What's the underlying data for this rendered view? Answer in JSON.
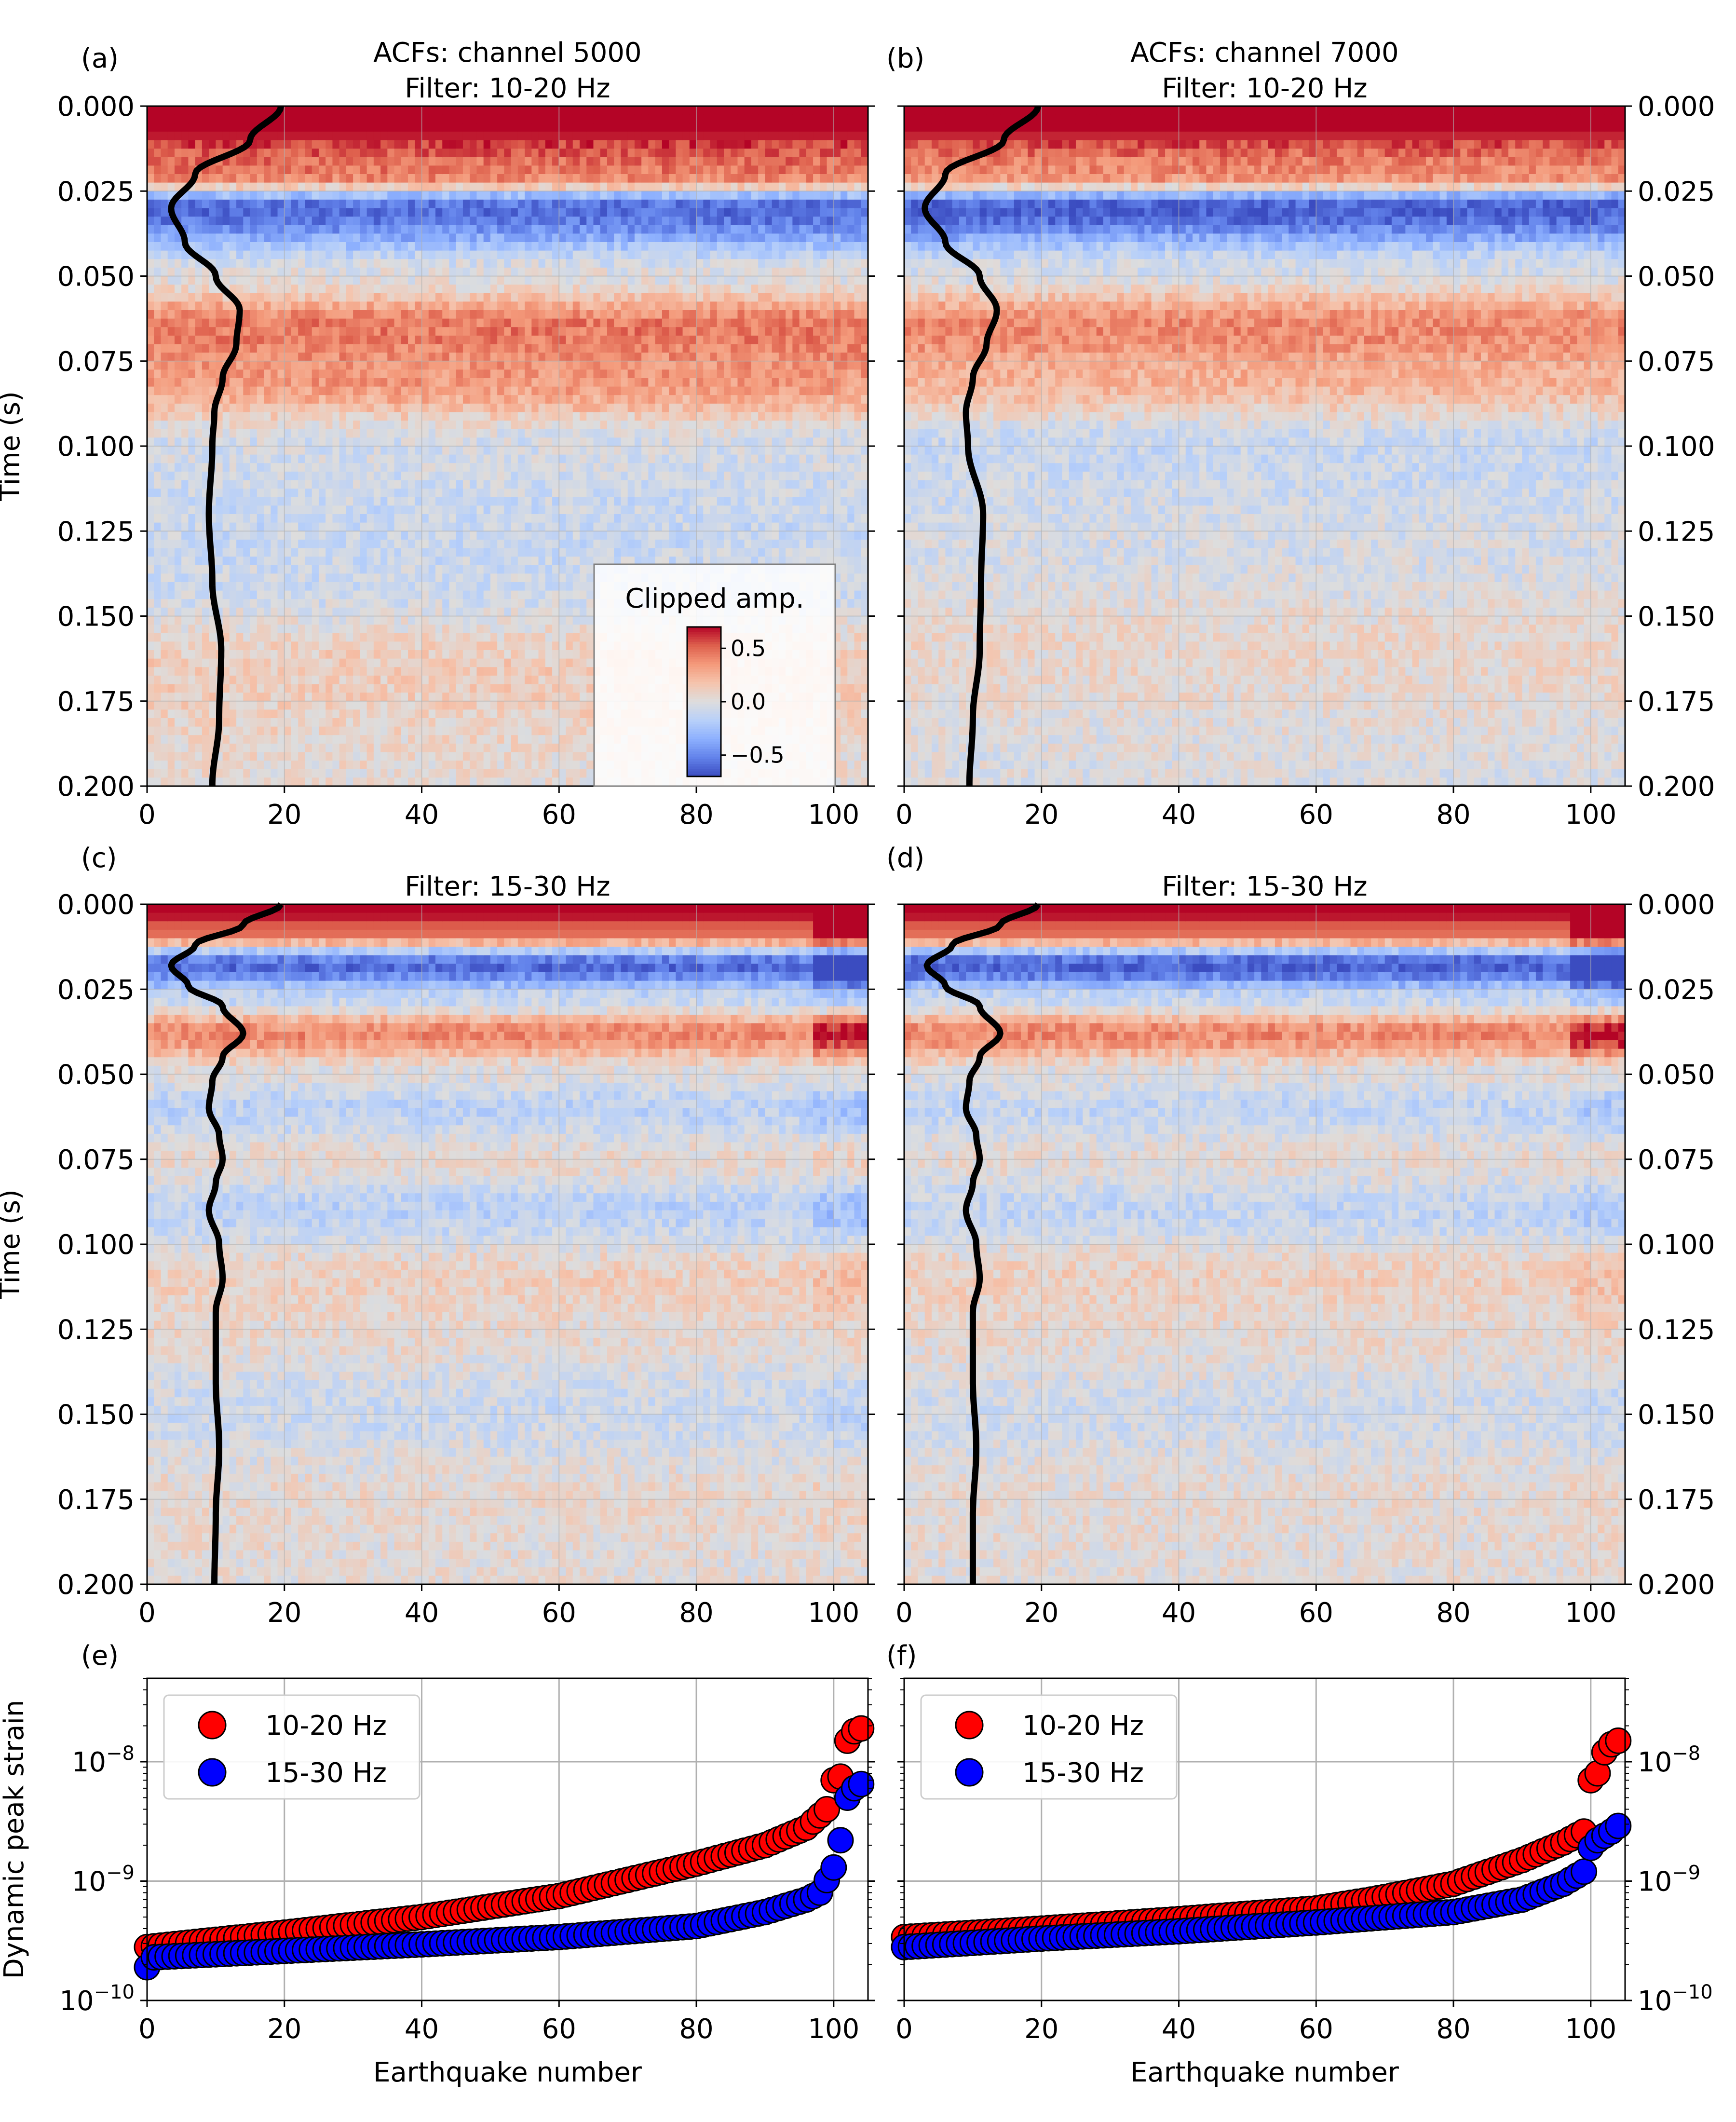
{
  "figure": {
    "colorbar": {
      "title": "Clipped amp.",
      "ticks": [
        "0.5",
        "0.0",
        "−0.5"
      ],
      "tick_values": [
        0.5,
        0.0,
        -0.5
      ],
      "range": [
        -0.7,
        0.7
      ],
      "colormap": "coolwarm"
    },
    "colors": {
      "red_series": "#ff0000",
      "blue_series": "#0000ff",
      "marker_edge": "#000000",
      "trace": "#000000",
      "grid": "#b0b0b0"
    }
  },
  "chart_data": [
    {
      "panel": "(a)",
      "type": "heatmap",
      "title_lines": [
        "ACFs: channel 5000",
        "Filter: 10-20 Hz"
      ],
      "xlabel": "",
      "ylabel": "Time (s)",
      "xlim": [
        0,
        105
      ],
      "ylim": [
        0.2,
        0.0
      ],
      "xticks": [
        0,
        20,
        40,
        60,
        80,
        100
      ],
      "yticks": [
        "0.000",
        "0.025",
        "0.050",
        "0.075",
        "0.100",
        "0.125",
        "0.150",
        "0.175",
        "0.200"
      ],
      "grid": true,
      "ytick_side": "left",
      "has_colorbar": true,
      "amplitude_profile": [
        {
          "t": 0.0,
          "a": 0.8
        },
        {
          "t": 0.02,
          "a": 0.45
        },
        {
          "t": 0.03,
          "a": -0.6
        },
        {
          "t": 0.05,
          "a": 0.0
        },
        {
          "t": 0.065,
          "a": 0.45
        },
        {
          "t": 0.08,
          "a": 0.35
        },
        {
          "t": 0.1,
          "a": -0.05
        },
        {
          "t": 0.125,
          "a": -0.1
        },
        {
          "t": 0.14,
          "a": -0.08
        },
        {
          "t": 0.165,
          "a": 0.12
        },
        {
          "t": 0.2,
          "a": 0.04
        }
      ],
      "trace": [
        {
          "t": 0.0,
          "x": 19.5
        },
        {
          "t": 0.01,
          "x": 15
        },
        {
          "t": 0.02,
          "x": 7
        },
        {
          "t": 0.03,
          "x": 3.5
        },
        {
          "t": 0.04,
          "x": 5.5
        },
        {
          "t": 0.05,
          "x": 10
        },
        {
          "t": 0.06,
          "x": 13.5
        },
        {
          "t": 0.07,
          "x": 13
        },
        {
          "t": 0.08,
          "x": 11
        },
        {
          "t": 0.09,
          "x": 9.8
        },
        {
          "t": 0.1,
          "x": 9.5
        },
        {
          "t": 0.12,
          "x": 9
        },
        {
          "t": 0.14,
          "x": 9.5
        },
        {
          "t": 0.16,
          "x": 10.8
        },
        {
          "t": 0.18,
          "x": 10.5
        },
        {
          "t": 0.2,
          "x": 9.5
        }
      ]
    },
    {
      "panel": "(b)",
      "type": "heatmap",
      "title_lines": [
        "ACFs: channel 7000",
        "Filter: 10-20 Hz"
      ],
      "xlabel": "",
      "ylabel": "",
      "xlim": [
        0,
        105
      ],
      "ylim": [
        0.2,
        0.0
      ],
      "xticks": [
        0,
        20,
        40,
        60,
        80,
        100
      ],
      "yticks": [
        "0.000",
        "0.025",
        "0.050",
        "0.075",
        "0.100",
        "0.125",
        "0.150",
        "0.175",
        "0.200"
      ],
      "grid": true,
      "ytick_side": "right",
      "has_colorbar": false,
      "amplitude_profile": [
        {
          "t": 0.0,
          "a": 0.8
        },
        {
          "t": 0.02,
          "a": 0.4
        },
        {
          "t": 0.03,
          "a": -0.65
        },
        {
          "t": 0.048,
          "a": -0.05
        },
        {
          "t": 0.065,
          "a": 0.4
        },
        {
          "t": 0.08,
          "a": 0.25
        },
        {
          "t": 0.1,
          "a": -0.1
        },
        {
          "t": 0.13,
          "a": -0.04
        },
        {
          "t": 0.16,
          "a": 0.06
        },
        {
          "t": 0.2,
          "a": -0.02
        }
      ],
      "trace": [
        {
          "t": 0.0,
          "x": 19.5
        },
        {
          "t": 0.01,
          "x": 14.5
        },
        {
          "t": 0.02,
          "x": 6
        },
        {
          "t": 0.03,
          "x": 3
        },
        {
          "t": 0.04,
          "x": 6
        },
        {
          "t": 0.05,
          "x": 11
        },
        {
          "t": 0.06,
          "x": 13.5
        },
        {
          "t": 0.07,
          "x": 12
        },
        {
          "t": 0.08,
          "x": 10
        },
        {
          "t": 0.09,
          "x": 9
        },
        {
          "t": 0.1,
          "x": 9.3
        },
        {
          "t": 0.12,
          "x": 11.5
        },
        {
          "t": 0.14,
          "x": 11.2
        },
        {
          "t": 0.16,
          "x": 11
        },
        {
          "t": 0.18,
          "x": 10
        },
        {
          "t": 0.2,
          "x": 9.5
        }
      ]
    },
    {
      "panel": "(c)",
      "type": "heatmap",
      "title_lines": [
        "Filter: 15-30 Hz"
      ],
      "xlabel": "",
      "ylabel": "Time (s)",
      "xlim": [
        0,
        105
      ],
      "ylim": [
        0.2,
        0.0
      ],
      "xticks": [
        0,
        20,
        40,
        60,
        80,
        100
      ],
      "yticks": [
        "0.000",
        "0.025",
        "0.050",
        "0.075",
        "0.100",
        "0.125",
        "0.150",
        "0.175",
        "0.200"
      ],
      "grid": true,
      "ytick_side": "left",
      "has_colorbar": false,
      "amplitude_profile": [
        {
          "t": 0.0,
          "a": 0.8
        },
        {
          "t": 0.008,
          "a": 0.5
        },
        {
          "t": 0.018,
          "a": -0.6
        },
        {
          "t": 0.028,
          "a": -0.1
        },
        {
          "t": 0.038,
          "a": 0.4
        },
        {
          "t": 0.05,
          "a": 0.0
        },
        {
          "t": 0.06,
          "a": -0.15
        },
        {
          "t": 0.075,
          "a": 0.05
        },
        {
          "t": 0.09,
          "a": -0.15
        },
        {
          "t": 0.11,
          "a": 0.1
        },
        {
          "t": 0.125,
          "a": 0.05
        },
        {
          "t": 0.15,
          "a": -0.08
        },
        {
          "t": 0.175,
          "a": 0.05
        },
        {
          "t": 0.2,
          "a": 0.02
        }
      ],
      "trace": [
        {
          "t": 0.0,
          "x": 19.5
        },
        {
          "t": 0.006,
          "x": 14
        },
        {
          "t": 0.012,
          "x": 7
        },
        {
          "t": 0.018,
          "x": 3.5
        },
        {
          "t": 0.024,
          "x": 6
        },
        {
          "t": 0.03,
          "x": 11
        },
        {
          "t": 0.038,
          "x": 14
        },
        {
          "t": 0.045,
          "x": 11
        },
        {
          "t": 0.052,
          "x": 9.5
        },
        {
          "t": 0.06,
          "x": 9
        },
        {
          "t": 0.068,
          "x": 10.5
        },
        {
          "t": 0.075,
          "x": 11
        },
        {
          "t": 0.082,
          "x": 10
        },
        {
          "t": 0.09,
          "x": 9
        },
        {
          "t": 0.1,
          "x": 10.5
        },
        {
          "t": 0.11,
          "x": 11
        },
        {
          "t": 0.12,
          "x": 10
        },
        {
          "t": 0.14,
          "x": 10
        },
        {
          "t": 0.16,
          "x": 10.5
        },
        {
          "t": 0.18,
          "x": 10
        },
        {
          "t": 0.2,
          "x": 9.8
        }
      ]
    },
    {
      "panel": "(d)",
      "type": "heatmap",
      "title_lines": [
        "Filter: 15-30 Hz"
      ],
      "xlabel": "",
      "ylabel": "",
      "xlim": [
        0,
        105
      ],
      "ylim": [
        0.2,
        0.0
      ],
      "xticks": [
        0,
        20,
        40,
        60,
        80,
        100
      ],
      "yticks": [
        "0.000",
        "0.025",
        "0.050",
        "0.075",
        "0.100",
        "0.125",
        "0.150",
        "0.175",
        "0.200"
      ],
      "grid": true,
      "ytick_side": "right",
      "has_colorbar": false,
      "amplitude_profile": [
        {
          "t": 0.0,
          "a": 0.8
        },
        {
          "t": 0.008,
          "a": 0.5
        },
        {
          "t": 0.018,
          "a": -0.65
        },
        {
          "t": 0.028,
          "a": -0.1
        },
        {
          "t": 0.038,
          "a": 0.4
        },
        {
          "t": 0.05,
          "a": 0.0
        },
        {
          "t": 0.06,
          "a": -0.12
        },
        {
          "t": 0.075,
          "a": 0.03
        },
        {
          "t": 0.09,
          "a": -0.12
        },
        {
          "t": 0.11,
          "a": 0.1
        },
        {
          "t": 0.125,
          "a": 0.05
        },
        {
          "t": 0.15,
          "a": -0.06
        },
        {
          "t": 0.175,
          "a": 0.04
        },
        {
          "t": 0.2,
          "a": 0.02
        }
      ],
      "trace": [
        {
          "t": 0.0,
          "x": 19.5
        },
        {
          "t": 0.006,
          "x": 14
        },
        {
          "t": 0.012,
          "x": 7
        },
        {
          "t": 0.018,
          "x": 3.3
        },
        {
          "t": 0.024,
          "x": 6
        },
        {
          "t": 0.03,
          "x": 11
        },
        {
          "t": 0.038,
          "x": 14
        },
        {
          "t": 0.045,
          "x": 11
        },
        {
          "t": 0.052,
          "x": 9.5
        },
        {
          "t": 0.06,
          "x": 9
        },
        {
          "t": 0.068,
          "x": 10.5
        },
        {
          "t": 0.075,
          "x": 11
        },
        {
          "t": 0.082,
          "x": 10
        },
        {
          "t": 0.09,
          "x": 9
        },
        {
          "t": 0.1,
          "x": 10.5
        },
        {
          "t": 0.11,
          "x": 11
        },
        {
          "t": 0.12,
          "x": 10
        },
        {
          "t": 0.14,
          "x": 10
        },
        {
          "t": 0.16,
          "x": 10.5
        },
        {
          "t": 0.18,
          "x": 10
        },
        {
          "t": 0.2,
          "x": 10
        }
      ]
    },
    {
      "panel": "(e)",
      "type": "scatter",
      "xlabel": "Earthquake number",
      "ylabel": "Dynamic peak strain",
      "xlim": [
        0,
        105
      ],
      "ylim": [
        1e-10,
        5e-08
      ],
      "yscale": "log",
      "xticks": [
        0,
        20,
        40,
        60,
        80,
        100
      ],
      "yticks": [
        1e-10,
        1e-09,
        1e-08
      ],
      "ytick_side": "left",
      "grid": true,
      "legend": "upper-left",
      "series": [
        {
          "name": "10-20 Hz",
          "color": "#ff0000",
          "n": 105,
          "anchors": [
            [
              0,
              2.8e-10
            ],
            [
              20,
              3.7e-10
            ],
            [
              40,
              5e-10
            ],
            [
              60,
              7.5e-10
            ],
            [
              80,
              1.4e-09
            ],
            [
              90,
              2e-09
            ],
            [
              96,
              2.8e-09
            ],
            [
              99,
              4e-09
            ],
            [
              100,
              7e-09
            ],
            [
              101,
              7.5e-09
            ],
            [
              102,
              1.5e-08
            ],
            [
              103,
              1.8e-08
            ],
            [
              104,
              1.9e-08
            ]
          ]
        },
        {
          "name": "15-30 Hz",
          "color": "#0000ff",
          "n": 105,
          "anchors": [
            [
              0,
              1.9e-10
            ],
            [
              1,
              2.3e-10
            ],
            [
              20,
              2.6e-10
            ],
            [
              40,
              2.95e-10
            ],
            [
              60,
              3.4e-10
            ],
            [
              80,
              4.2e-10
            ],
            [
              90,
              5.5e-10
            ],
            [
              96,
              7e-10
            ],
            [
              98,
              8e-10
            ],
            [
              100,
              1.3e-09
            ],
            [
              101,
              2.2e-09
            ],
            [
              102,
              5e-09
            ],
            [
              103,
              6e-09
            ],
            [
              104,
              6.5e-09
            ]
          ]
        }
      ]
    },
    {
      "panel": "(f)",
      "type": "scatter",
      "xlabel": "Earthquake number",
      "ylabel": "",
      "xlim": [
        0,
        105
      ],
      "ylim": [
        1e-10,
        5e-08
      ],
      "yscale": "log",
      "xticks": [
        0,
        20,
        40,
        60,
        80,
        100
      ],
      "yticks": [
        1e-10,
        1e-09,
        1e-08
      ],
      "ytick_side": "right",
      "grid": true,
      "legend": "upper-left",
      "series": [
        {
          "name": "10-20 Hz",
          "color": "#ff0000",
          "n": 105,
          "anchors": [
            [
              0,
              3.4e-10
            ],
            [
              20,
              4e-10
            ],
            [
              40,
              4.8e-10
            ],
            [
              60,
              5.9e-10
            ],
            [
              68,
              7e-10
            ],
            [
              80,
              9.5e-10
            ],
            [
              90,
              1.5e-09
            ],
            [
              96,
              2.1e-09
            ],
            [
              99,
              2.6e-09
            ],
            [
              100,
              7e-09
            ],
            [
              101,
              8e-09
            ],
            [
              102,
              1.2e-08
            ],
            [
              103,
              1.4e-08
            ],
            [
              104,
              1.5e-08
            ]
          ]
        },
        {
          "name": "15-30 Hz",
          "color": "#0000ff",
          "n": 105,
          "anchors": [
            [
              0,
              2.8e-10
            ],
            [
              20,
              3.3e-10
            ],
            [
              40,
              3.8e-10
            ],
            [
              60,
              4.5e-10
            ],
            [
              80,
              5.5e-10
            ],
            [
              90,
              7e-10
            ],
            [
              96,
              9.5e-10
            ],
            [
              99,
              1.2e-09
            ],
            [
              100,
              1.9e-09
            ],
            [
              101,
              2.2e-09
            ],
            [
              102,
              2.4e-09
            ],
            [
              103,
              2.6e-09
            ],
            [
              104,
              2.9e-09
            ]
          ]
        }
      ]
    }
  ]
}
